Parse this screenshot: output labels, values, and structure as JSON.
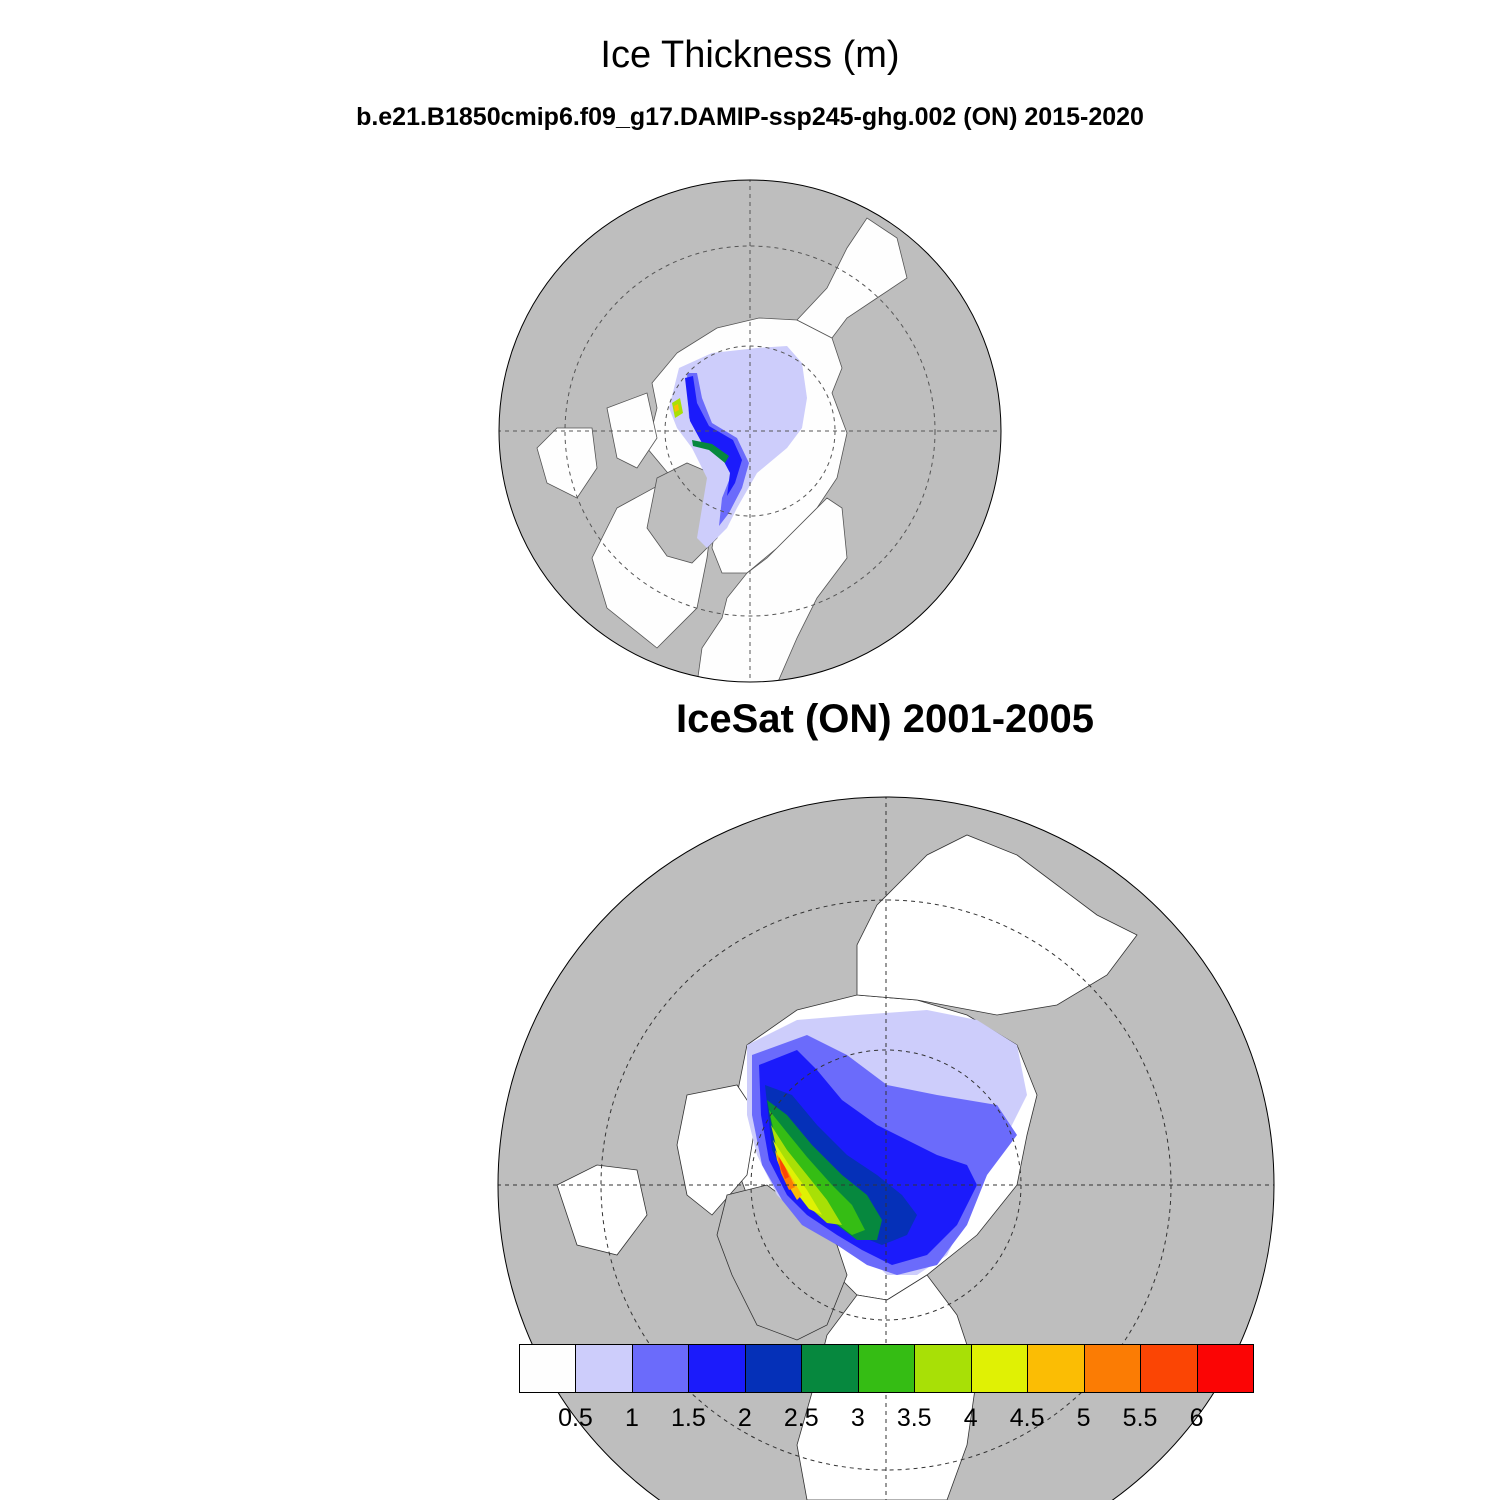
{
  "title": "Ice Thickness (m)",
  "subtitle": "b.e21.B1850cmip6.f09_g17.DAMIP-ssp245-ghg.002 (ON) 2015-2020",
  "panel2_title": "IceSat (ON) 2001-2005",
  "colors": {
    "land": "#bebebe",
    "ocean": "#fefefe",
    "levels": [
      "#fefefe",
      "#cdcdfb",
      "#6b6bfb",
      "#1b1bfb",
      "#0530b8",
      "#06883e",
      "#35bd14",
      "#a8e006",
      "#e0f104",
      "#fbbd04",
      "#fb7c04",
      "#fb4504",
      "#fb0505"
    ]
  },
  "colorbar": {
    "labels": [
      "0.5",
      "1",
      "1.5",
      "2",
      "2.5",
      "3",
      "3.5",
      "4",
      "4.5",
      "5",
      "5.5",
      "6"
    ]
  }
}
